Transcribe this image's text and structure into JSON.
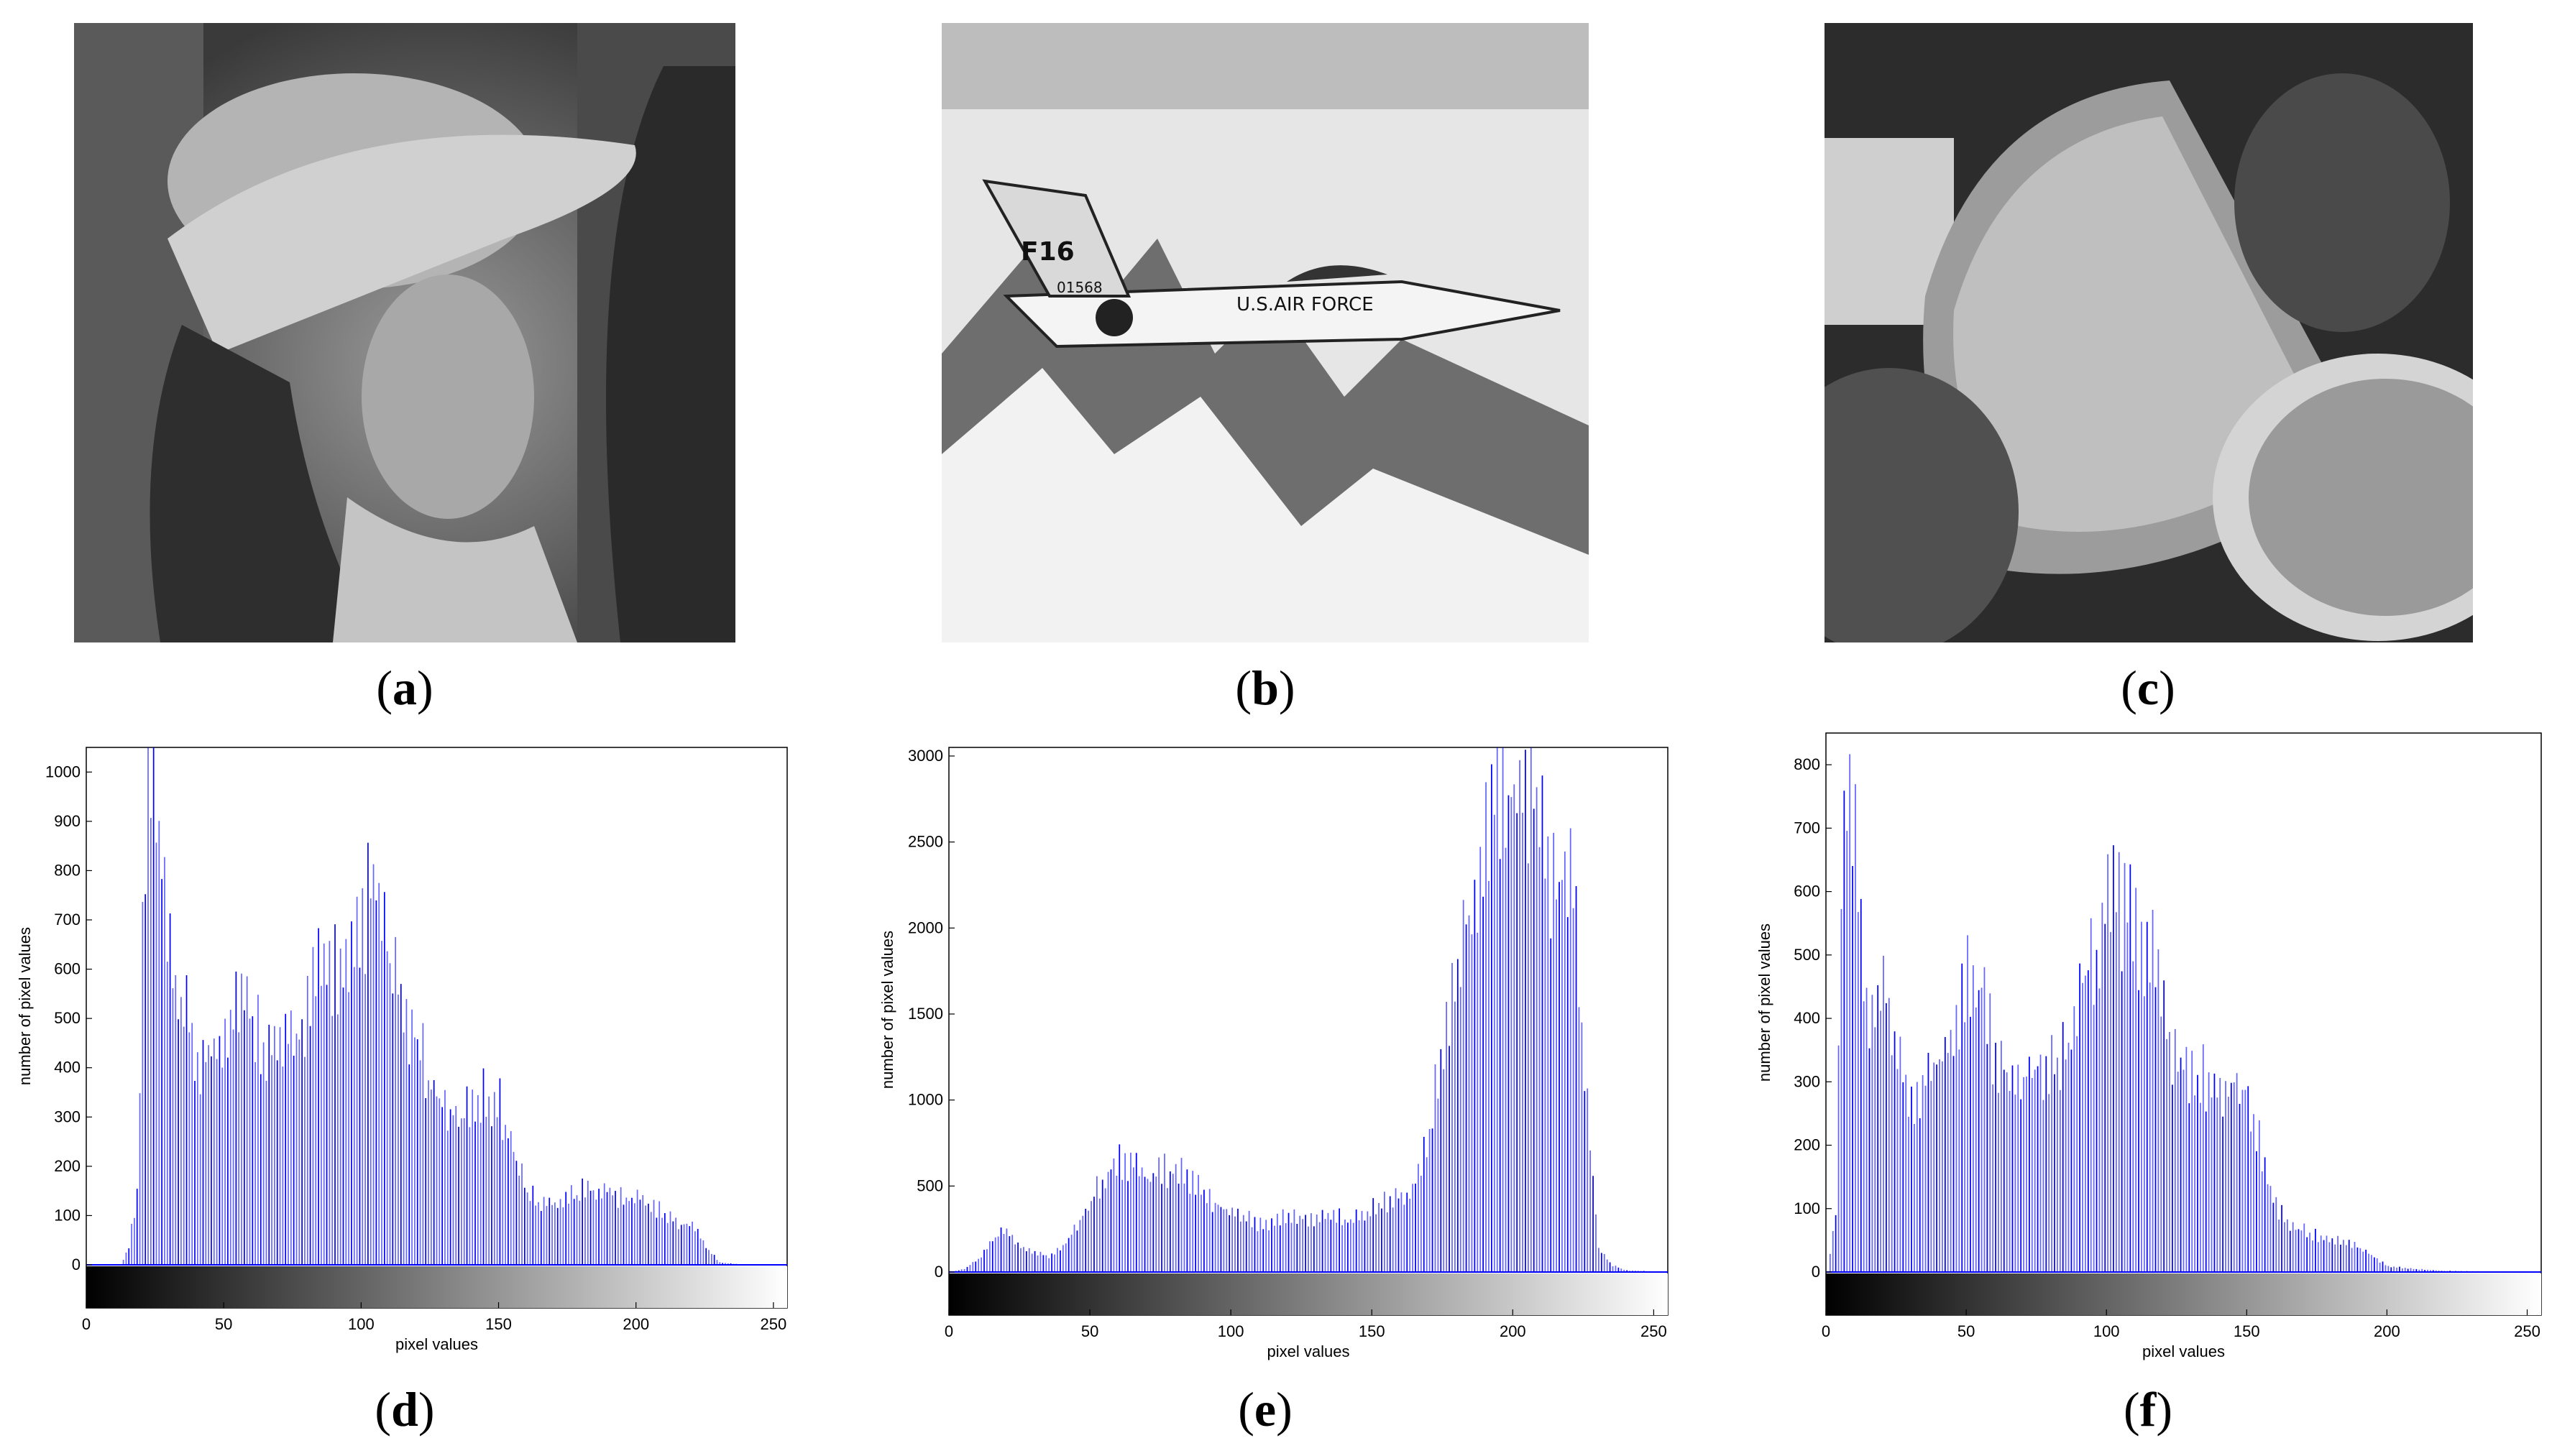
{
  "panels": [
    {
      "id": "a",
      "label_open": "(",
      "label_letter": "a",
      "label_close": ")",
      "content": "grayscale photo"
    },
    {
      "id": "b",
      "label_open": "(",
      "label_letter": "b",
      "label_close": ")",
      "content": "grayscale photo",
      "aircraft_text": {
        "tail": "F16",
        "serial": "01568",
        "fuselage": "U.S.AIR FORCE"
      }
    },
    {
      "id": "c",
      "label_open": "(",
      "label_letter": "c",
      "label_close": ")",
      "content": "grayscale photo"
    },
    {
      "id": "d",
      "label_open": "(",
      "label_letter": "d",
      "label_close": ")"
    },
    {
      "id": "e",
      "label_open": "(",
      "label_letter": "e",
      "label_close": ")"
    },
    {
      "id": "f",
      "label_open": "(",
      "label_letter": "f",
      "label_close": ")"
    }
  ],
  "chart_data": [
    {
      "type": "bar",
      "panel": "d",
      "title": "",
      "xlabel": "pixel values",
      "ylabel": "number of pixel values",
      "xlim": [
        0,
        255
      ],
      "ylim": [
        0,
        1050
      ],
      "xticks": [
        0,
        50,
        100,
        150,
        200,
        250
      ],
      "yticks": [
        0,
        100,
        200,
        300,
        400,
        500,
        600,
        700,
        800,
        900,
        1000
      ],
      "bar_color": "#0000ff",
      "colorbar": "grayscale 0-255",
      "profile_x": [
        0,
        12,
        15,
        18,
        20,
        22,
        24,
        26,
        30,
        35,
        40,
        45,
        50,
        55,
        60,
        65,
        70,
        75,
        80,
        85,
        90,
        95,
        100,
        103,
        106,
        110,
        115,
        120,
        125,
        130,
        135,
        140,
        145,
        150,
        155,
        160,
        165,
        170,
        175,
        180,
        185,
        190,
        195,
        200,
        205,
        210,
        215,
        220,
        225,
        230,
        240,
        255
      ],
      "profile_y": [
        0,
        0,
        40,
        150,
        700,
        1050,
        1050,
        900,
        650,
        560,
        440,
        470,
        520,
        600,
        540,
        480,
        470,
        490,
        560,
        650,
        650,
        620,
        730,
        820,
        800,
        650,
        550,
        480,
        400,
        350,
        310,
        360,
        370,
        350,
        250,
        160,
        130,
        140,
        150,
        160,
        170,
        160,
        140,
        150,
        130,
        110,
        90,
        90,
        40,
        5,
        0,
        0
      ]
    },
    {
      "type": "bar",
      "panel": "e",
      "title": "",
      "xlabel": "pixel values",
      "ylabel": "number of pixel values",
      "xlim": [
        0,
        255
      ],
      "ylim": [
        0,
        3050
      ],
      "xticks": [
        0,
        50,
        100,
        150,
        200,
        250
      ],
      "yticks": [
        0,
        500,
        1000,
        1500,
        2000,
        2500,
        3000
      ],
      "bar_color": "#0000ff",
      "colorbar": "grayscale 0-255",
      "profile_x": [
        0,
        5,
        10,
        15,
        20,
        25,
        30,
        35,
        40,
        45,
        50,
        55,
        60,
        65,
        70,
        75,
        80,
        85,
        90,
        95,
        100,
        105,
        110,
        115,
        120,
        125,
        130,
        135,
        140,
        145,
        150,
        155,
        160,
        165,
        170,
        175,
        180,
        185,
        190,
        195,
        200,
        205,
        210,
        215,
        220,
        225,
        230,
        235,
        240,
        255
      ],
      "profile_y": [
        0,
        20,
        80,
        200,
        280,
        150,
        120,
        100,
        150,
        300,
        450,
        600,
        700,
        680,
        600,
        640,
        620,
        580,
        500,
        420,
        380,
        330,
        300,
        320,
        360,
        330,
        350,
        360,
        330,
        350,
        400,
        450,
        470,
        550,
        900,
        1400,
        1900,
        2400,
        2800,
        3050,
        3050,
        3050,
        2700,
        2400,
        2600,
        1200,
        150,
        40,
        10,
        0
      ]
    },
    {
      "type": "bar",
      "panel": "f",
      "title": "",
      "xlabel": "pixel values",
      "ylabel": "number of pixel values",
      "xlim": [
        0,
        255
      ],
      "ylim": [
        0,
        850
      ],
      "xticks": [
        0,
        50,
        100,
        150,
        200,
        250
      ],
      "yticks": [
        0,
        100,
        200,
        300,
        400,
        500,
        600,
        700,
        800
      ],
      "bar_color": "#0000ff",
      "colorbar": "grayscale 0-255",
      "profile_x": [
        0,
        3,
        5,
        7,
        9,
        11,
        13,
        15,
        17,
        20,
        23,
        26,
        30,
        35,
        40,
        45,
        50,
        55,
        60,
        65,
        70,
        75,
        80,
        85,
        90,
        95,
        100,
        105,
        110,
        115,
        120,
        125,
        130,
        135,
        140,
        145,
        150,
        155,
        160,
        165,
        170,
        175,
        180,
        185,
        190,
        195,
        200,
        210,
        220,
        255
      ],
      "profile_y": [
        0,
        100,
        650,
        850,
        820,
        660,
        480,
        380,
        420,
        520,
        380,
        340,
        300,
        320,
        370,
        420,
        490,
        480,
        360,
        330,
        330,
        360,
        340,
        380,
        480,
        540,
        610,
        620,
        580,
        560,
        420,
        360,
        340,
        330,
        300,
        320,
        310,
        200,
        110,
        80,
        70,
        60,
        55,
        50,
        40,
        25,
        10,
        5,
        2,
        0
      ]
    }
  ]
}
